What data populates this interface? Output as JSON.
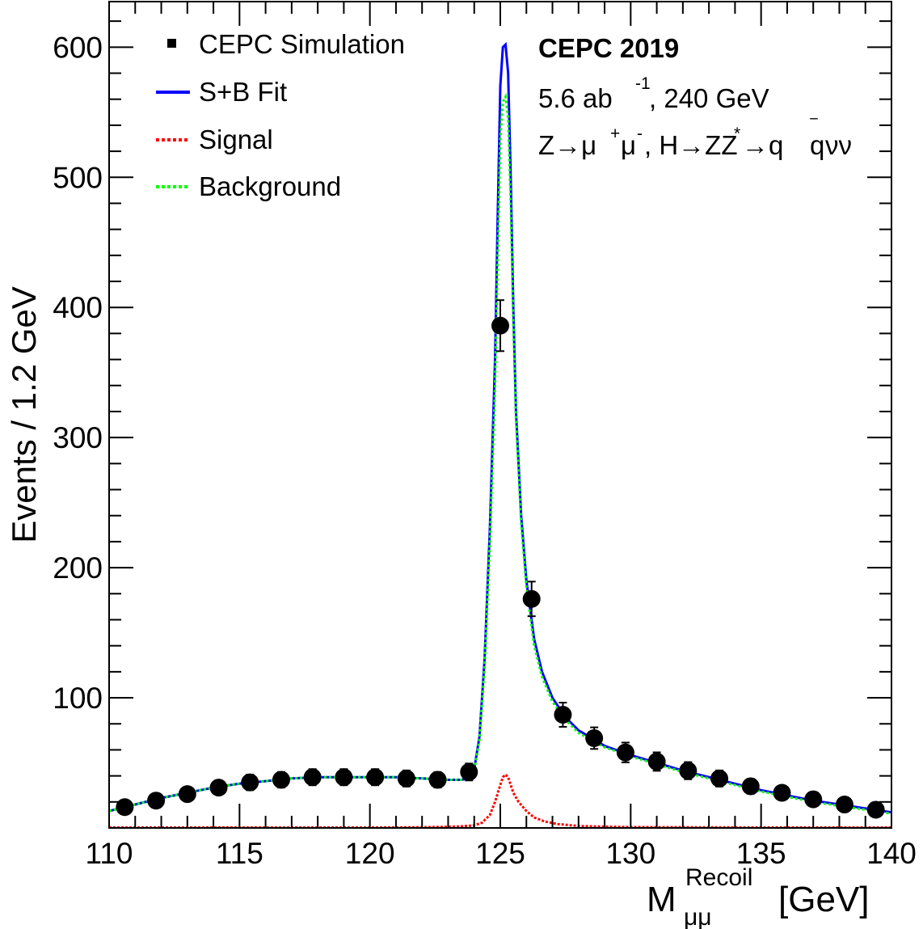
{
  "chart_data": {
    "type": "scatter",
    "xlabel": "M",
    "xlabel_super": "Recoil",
    "xlabel_sub": "μμ",
    "xlabel_unit": "[GeV]",
    "ylabel": "Events / 1.2  GeV",
    "xlim": [
      110,
      140
    ],
    "ylim": [
      0,
      635
    ],
    "x_ticks": [
      110,
      115,
      120,
      125,
      130,
      135,
      140
    ],
    "y_ticks": [
      100,
      200,
      300,
      400,
      500,
      600
    ],
    "grid": false,
    "legend_position": "top-left",
    "legend": {
      "data": "CEPC Simulation",
      "fit": "S+B Fit",
      "signal": "Signal",
      "background": "Background"
    },
    "annotations": {
      "title": "CEPC 2019",
      "lumi_prefix": "5.6 ab",
      "lumi_exp": "-1",
      "lumi_suffix": ", 240 GeV",
      "channel_a": "Z→μ",
      "channel_b": "μ",
      "channel_c": ", H→ZZ",
      "channel_d": "→q",
      "channel_e": "q",
      "channel_f": "νν",
      "sup_plus": "+",
      "sup_minus": "-",
      "sup_star": "*",
      "bar": "‾"
    },
    "colors": {
      "data": "#000000",
      "fit": "#0000ff",
      "signal": "#ff0000",
      "background": "#00ff00"
    },
    "data_points": [
      {
        "x": 110.6,
        "y": 16,
        "err": 4
      },
      {
        "x": 111.8,
        "y": 21,
        "err": 4.5
      },
      {
        "x": 113.0,
        "y": 26,
        "err": 5
      },
      {
        "x": 114.2,
        "y": 31,
        "err": 5.5
      },
      {
        "x": 115.4,
        "y": 35,
        "err": 6
      },
      {
        "x": 116.6,
        "y": 37,
        "err": 6
      },
      {
        "x": 117.8,
        "y": 39,
        "err": 6.2
      },
      {
        "x": 119.0,
        "y": 39,
        "err": 6.2
      },
      {
        "x": 120.2,
        "y": 39,
        "err": 6.2
      },
      {
        "x": 121.4,
        "y": 38,
        "err": 6.2
      },
      {
        "x": 122.6,
        "y": 37,
        "err": 6
      },
      {
        "x": 123.8,
        "y": 43,
        "err": 6.5
      },
      {
        "x": 125.0,
        "y": 386,
        "err": 19.6
      },
      {
        "x": 126.2,
        "y": 176,
        "err": 13.3
      },
      {
        "x": 127.4,
        "y": 87,
        "err": 9.3
      },
      {
        "x": 128.6,
        "y": 69,
        "err": 8.3
      },
      {
        "x": 129.8,
        "y": 58,
        "err": 7.6
      },
      {
        "x": 131.0,
        "y": 51,
        "err": 7.1
      },
      {
        "x": 132.2,
        "y": 44,
        "err": 6.6
      },
      {
        "x": 133.4,
        "y": 38,
        "err": 6.2
      },
      {
        "x": 134.6,
        "y": 32,
        "err": 5.7
      },
      {
        "x": 135.8,
        "y": 27,
        "err": 5.2
      },
      {
        "x": 137.0,
        "y": 22,
        "err": 4.7
      },
      {
        "x": 138.2,
        "y": 18,
        "err": 4.2
      },
      {
        "x": 139.4,
        "y": 14,
        "err": 3.7
      }
    ],
    "fit_curve": {
      "x": [
        110,
        111,
        112,
        113,
        114,
        115,
        116,
        117,
        118,
        119,
        120,
        121,
        122,
        123,
        123.5,
        123.8,
        124.0,
        124.2,
        124.4,
        124.6,
        124.8,
        124.9,
        125.0,
        125.1,
        125.2,
        125.3,
        125.4,
        125.5,
        125.6,
        125.8,
        126.0,
        126.3,
        126.6,
        127.0,
        127.5,
        128.0,
        129.0,
        130.0,
        131.0,
        132.0,
        133.0,
        134.0,
        135.0,
        136.0,
        137.0,
        138.0,
        139.0,
        140.0
      ],
      "y": [
        13,
        18,
        23,
        27,
        31,
        34,
        36,
        38,
        39,
        39,
        39,
        39,
        38,
        37,
        37,
        38,
        45,
        70,
        130,
        230,
        360,
        470,
        570,
        600,
        602,
        580,
        500,
        400,
        320,
        240,
        190,
        145,
        120,
        100,
        85,
        75,
        63,
        56,
        50,
        44,
        39,
        34,
        29,
        25,
        21,
        18,
        15,
        12
      ]
    },
    "background_curve": {
      "x": [
        110,
        111,
        112,
        113,
        114,
        115,
        116,
        117,
        118,
        119,
        120,
        121,
        122,
        123,
        123.5,
        123.8,
        124.0,
        124.2,
        124.4,
        124.6,
        124.8,
        124.9,
        125.0,
        125.1,
        125.2,
        125.3,
        125.4,
        125.5,
        125.6,
        125.8,
        126.0,
        126.3,
        126.6,
        127.0,
        127.5,
        128.0,
        129.0,
        130.0,
        131.0,
        132.0,
        133.0,
        134.0,
        135.0,
        136.0,
        137.0,
        138.0,
        139.0,
        140.0
      ],
      "y": [
        13,
        18,
        23,
        27,
        31,
        34,
        36,
        38,
        39,
        39,
        39,
        39,
        38,
        37,
        37,
        38,
        44,
        68,
        125,
        220,
        340,
        440,
        530,
        558,
        562,
        545,
        480,
        390,
        315,
        235,
        185,
        140,
        116,
        97,
        83,
        73,
        62,
        55,
        49,
        43,
        38,
        33,
        28,
        24,
        20,
        17,
        14,
        11
      ]
    },
    "signal_curve": {
      "x": [
        110,
        115,
        120,
        122,
        123,
        123.5,
        124.0,
        124.3,
        124.6,
        124.8,
        125.0,
        125.1,
        125.2,
        125.3,
        125.4,
        125.5,
        125.7,
        126.0,
        126.3,
        126.7,
        127.2,
        128.0,
        129.0,
        130.0,
        135.0,
        140.0
      ],
      "y": [
        0.3,
        0.3,
        0.3,
        0.5,
        0.8,
        1.2,
        2,
        4,
        10,
        20,
        33,
        39,
        41,
        39,
        33,
        27,
        20,
        13,
        8,
        5,
        3,
        1.5,
        1,
        0.6,
        0.4,
        0.3
      ]
    }
  }
}
